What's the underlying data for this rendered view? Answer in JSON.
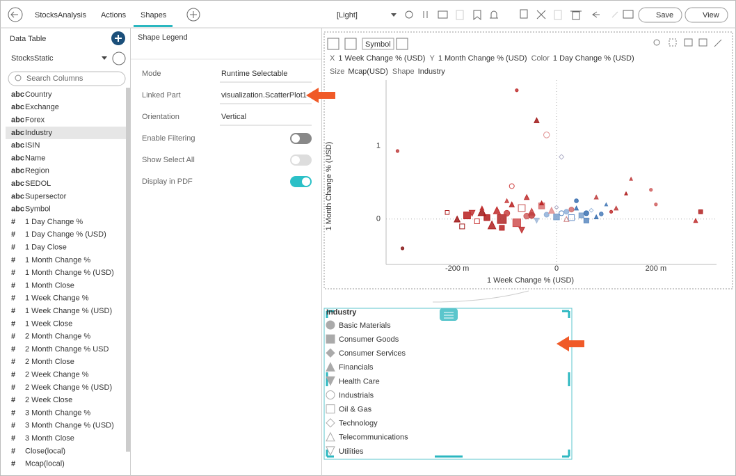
{
  "toolbar": {
    "tabs": [
      "StocksAnalysis",
      "Actions",
      "Shapes"
    ],
    "theme": "[Light]",
    "save": "Save",
    "view": "View"
  },
  "data_table": {
    "title": "Data Table",
    "source": "StocksStatic",
    "search_placeholder": "Search Columns",
    "columns": [
      {
        "type": "abc",
        "name": "Country"
      },
      {
        "type": "abc",
        "name": "Exchange"
      },
      {
        "type": "abc",
        "name": "Forex"
      },
      {
        "type": "abc",
        "name": "Industry"
      },
      {
        "type": "abc",
        "name": "ISIN"
      },
      {
        "type": "abc",
        "name": "Name"
      },
      {
        "type": "abc",
        "name": "Region"
      },
      {
        "type": "abc",
        "name": "SEDOL"
      },
      {
        "type": "abc",
        "name": "Supersector"
      },
      {
        "type": "abc",
        "name": "Symbol"
      },
      {
        "type": "#",
        "name": "1 Day Change %"
      },
      {
        "type": "#",
        "name": "1 Day Change % (USD)"
      },
      {
        "type": "#",
        "name": "1 Day Close"
      },
      {
        "type": "#",
        "name": "1 Month Change %"
      },
      {
        "type": "#",
        "name": "1 Month Change % (USD)"
      },
      {
        "type": "#",
        "name": "1 Month Close"
      },
      {
        "type": "#",
        "name": "1 Week Change %"
      },
      {
        "type": "#",
        "name": "1 Week Change % (USD)"
      },
      {
        "type": "#",
        "name": "1 Week Close"
      },
      {
        "type": "#",
        "name": "2 Month Change %"
      },
      {
        "type": "#",
        "name": "2 Month Change % USD"
      },
      {
        "type": "#",
        "name": "2 Month Close"
      },
      {
        "type": "#",
        "name": "2 Week Change %"
      },
      {
        "type": "#",
        "name": "2 Week Change % (USD)"
      },
      {
        "type": "#",
        "name": "2 Week Close"
      },
      {
        "type": "#",
        "name": "3 Month Change %"
      },
      {
        "type": "#",
        "name": "3 Month Change % (USD)"
      },
      {
        "type": "#",
        "name": "3 Month Close"
      },
      {
        "type": "#",
        "name": "Close(local)"
      },
      {
        "type": "#",
        "name": "Mcap(local)"
      }
    ],
    "selected": 3
  },
  "settings": {
    "title": "Shape Legend",
    "rows": [
      {
        "label": "Mode",
        "value": "Runtime Selectable"
      },
      {
        "label": "Linked Part",
        "value": "visualization.ScatterPlot1"
      },
      {
        "label": "Orientation",
        "value": "Vertical"
      },
      {
        "label": "Enable Filtering",
        "on": false,
        "enabled": true
      },
      {
        "label": "Show Select All",
        "on": false,
        "enabled": false
      },
      {
        "label": "Display in PDF",
        "on": true,
        "enabled": true
      }
    ]
  },
  "chart_tools": {
    "symbol": "Symbol"
  },
  "chart_data": {
    "type": "scatter",
    "bindings": [
      {
        "role": "X",
        "field": "1 Week Change % (USD)"
      },
      {
        "role": "Y",
        "field": "1 Month Change % (USD)"
      },
      {
        "role": "Color",
        "field": "1 Day Change % (USD)"
      },
      {
        "role": "Size",
        "field": "Mcap(USD)"
      },
      {
        "role": "Shape",
        "field": "Industry"
      }
    ],
    "x_label": "1 Week Change % (USD)",
    "y_label": "1 Month Change % (USD)",
    "xlim": [
      -0.343,
      0.322
    ],
    "ylim": [
      -0.62,
      1.9
    ],
    "xticks": [
      {
        "value": -0.2,
        "label": "-200 m"
      },
      0,
      {
        "value": 0.2,
        "label": "200 m"
      }
    ],
    "yticks": [
      0,
      1
    ],
    "x": [
      -0.08,
      -0.04,
      -0.02,
      0.01,
      -0.32,
      -0.31,
      0.15,
      0.28,
      0.29,
      0.19,
      -0.2,
      -0.18,
      -0.16,
      -0.15,
      -0.14,
      -0.12,
      -0.11,
      -0.1,
      -0.09,
      -0.08,
      -0.07,
      -0.06,
      -0.05,
      -0.04,
      -0.03,
      -0.02,
      -0.01,
      0.0,
      0.01,
      0.02,
      0.03,
      0.04,
      0.05,
      0.06,
      0.07,
      0.08,
      0.09,
      -0.13,
      -0.17,
      -0.06,
      -0.09,
      -0.03,
      0.0,
      0.04,
      0.1,
      0.12,
      -0.19,
      -0.11,
      -0.07,
      0.02,
      -0.15,
      -0.05,
      0.06,
      0.11,
      -0.1,
      0.14,
      0.2,
      -0.22,
      0.08,
      0.03
    ],
    "y": [
      1.76,
      1.35,
      1.15,
      0.85,
      0.93,
      -0.4,
      0.55,
      -0.02,
      0.1,
      0.4,
      0.0,
      0.05,
      -0.03,
      0.1,
      0.02,
      0.12,
      0.0,
      0.08,
      0.2,
      -0.05,
      0.15,
      0.04,
      0.1,
      -0.02,
      0.18,
      0.06,
      0.12,
      0.03,
      0.08,
      0.1,
      0.02,
      0.15,
      0.05,
      0.08,
      0.12,
      0.3,
      0.07,
      -0.08,
      0.08,
      0.3,
      0.45,
      0.22,
      0.16,
      0.25,
      0.2,
      0.15,
      -0.1,
      -0.12,
      -0.15,
      0.0,
      0.15,
      0.05,
      -0.02,
      0.1,
      0.25,
      0.35,
      0.2,
      0.09,
      0.03,
      0.13
    ],
    "size": [
      3,
      5,
      6,
      5,
      3,
      3,
      3,
      4,
      4,
      3,
      6,
      7,
      5,
      8,
      6,
      7,
      9,
      6,
      5,
      8,
      7,
      6,
      7,
      5,
      6,
      5,
      6,
      6,
      5,
      5,
      6,
      4,
      5,
      5,
      4,
      4,
      4,
      8,
      6,
      5,
      5,
      4,
      4,
      4,
      3,
      4,
      5,
      5,
      6,
      5,
      4,
      6,
      5,
      3,
      4,
      3,
      3,
      4,
      4,
      5
    ],
    "shape": [
      0,
      3,
      5,
      7,
      0,
      0,
      3,
      3,
      1,
      0,
      3,
      1,
      6,
      3,
      1,
      3,
      1,
      0,
      3,
      1,
      6,
      0,
      3,
      4,
      1,
      0,
      3,
      1,
      5,
      0,
      6,
      3,
      1,
      0,
      7,
      3,
      0,
      3,
      4,
      3,
      5,
      3,
      7,
      0,
      3,
      3,
      6,
      1,
      4,
      8,
      3,
      0,
      1,
      0,
      3,
      3,
      0,
      6,
      3,
      0
    ],
    "color": [
      "#c03030",
      "#a01818",
      "#e09090",
      "#b0b0c8",
      "#c04040",
      "#8a1a1a",
      "#c04040",
      "#c03030",
      "#b02020",
      "#d06060",
      "#a01818",
      "#b82020",
      "#c83030",
      "#a01818",
      "#b01c1c",
      "#c02828",
      "#b02424",
      "#c84040",
      "#b82020",
      "#d05050",
      "#c85050",
      "#d06060",
      "#c84848",
      "#a0b8d8",
      "#d87070",
      "#90b0d8",
      "#e09090",
      "#7aa0cc",
      "#5a88c0",
      "#90b0d8",
      "#6a90c8",
      "#3a70b0",
      "#7aa0cc",
      "#3a70b0",
      "#9ab8dc",
      "#c04040",
      "#4a7cb8",
      "#b02020",
      "#c03030",
      "#c03030",
      "#d04040",
      "#b82020",
      "#b0b0c8",
      "#3a70b0",
      "#4a7cb8",
      "#c04040",
      "#a01818",
      "#b82020",
      "#c03030",
      "#d08080",
      "#c03030",
      "#c04040",
      "#5a88c0",
      "#c03030",
      "#c84040",
      "#b02020",
      "#d06060",
      "#b02020",
      "#3a70b0",
      "#d07070"
    ]
  },
  "legend": {
    "title": "Industry",
    "items": [
      "Basic Materials",
      "Consumer Goods",
      "Consumer Services",
      "Financials",
      "Health Care",
      "Industrials",
      "Oil & Gas",
      "Technology",
      "Telecommunications",
      "Utilities"
    ]
  }
}
